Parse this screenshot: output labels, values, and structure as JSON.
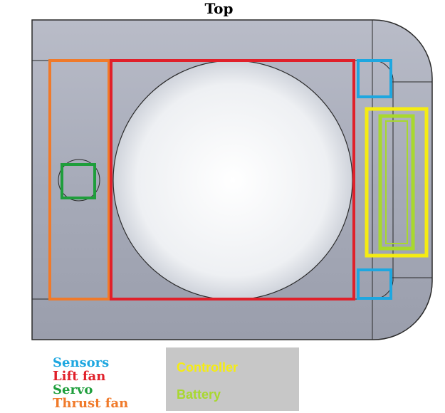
{
  "title": "Top",
  "legend": {
    "left": [
      {
        "label": "Sensors",
        "color": "#1ea7e0"
      },
      {
        "label": "Lift fan",
        "color": "#e0202a"
      },
      {
        "label": "Servo",
        "color": "#1f9e3c"
      },
      {
        "label": "Thrust fan",
        "color": "#f07a2a"
      }
    ],
    "box": [
      {
        "label": "Controller",
        "color": "#f5ec12"
      },
      {
        "label": "Battery",
        "color": "#a8d82e"
      }
    ]
  },
  "colors": {
    "body_fill": "#a9adbb",
    "body_edge": "#2a2a2a",
    "fan_fill": "#f4f5f7",
    "sensors": "#1ea7e0",
    "lift_fan": "#e0202a",
    "servo": "#1f9e3c",
    "thrust_fan": "#f07a2a",
    "controller": "#f5ec12",
    "battery": "#a8d82e"
  }
}
